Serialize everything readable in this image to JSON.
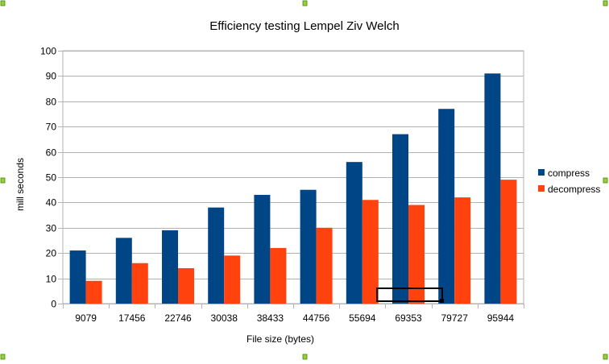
{
  "chart_data": {
    "type": "bar",
    "title": "Efficiency testing Lempel Ziv Welch",
    "xlabel": "File size (bytes)",
    "ylabel": "mill seconds",
    "ylim": [
      0,
      100
    ],
    "yticks": [
      0,
      10,
      20,
      30,
      40,
      50,
      60,
      70,
      80,
      90,
      100
    ],
    "grid": true,
    "legend_position": "right",
    "categories": [
      "9079",
      "17456",
      "22746",
      "30038",
      "38433",
      "44756",
      "55694",
      "69353",
      "79727",
      "95944"
    ],
    "series": [
      {
        "name": "compress",
        "color": "#004586",
        "values": [
          21,
          26,
          29,
          38,
          43,
          45,
          56,
          67,
          77,
          91
        ]
      },
      {
        "name": "decompress",
        "color": "#ff420e",
        "values": [
          9,
          16,
          14,
          19,
          22,
          30,
          41,
          39,
          42,
          49
        ]
      }
    ]
  }
}
